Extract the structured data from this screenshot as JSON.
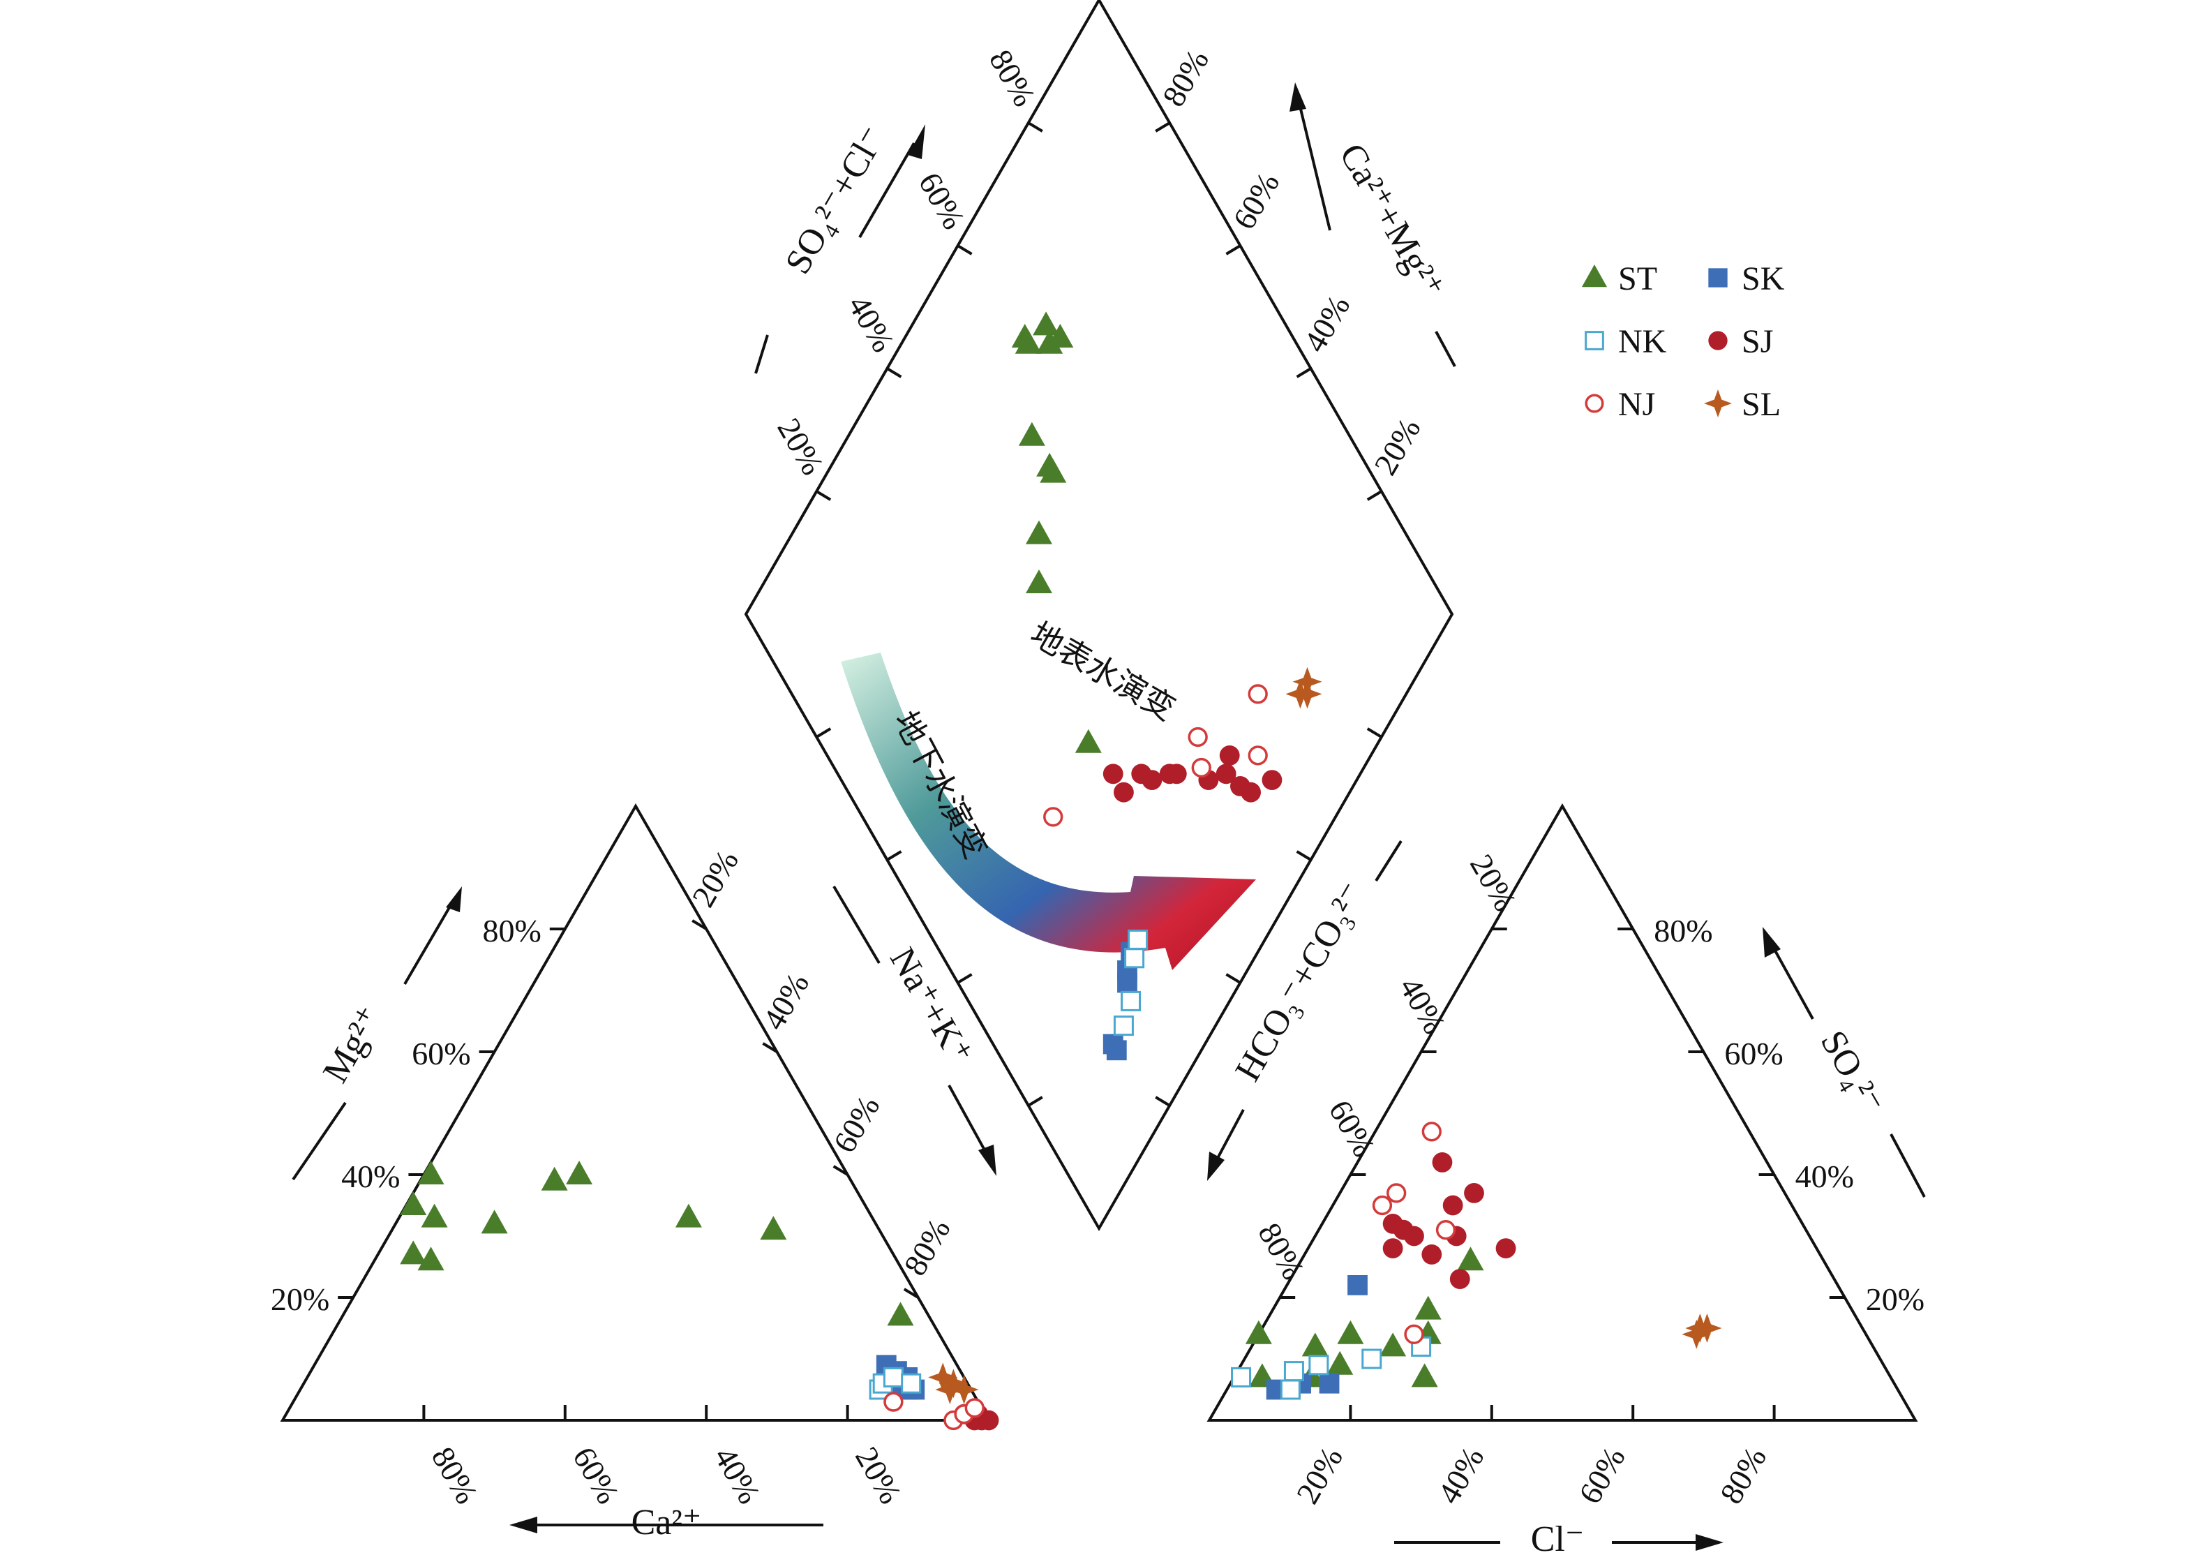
{
  "chart_data": {
    "type": "scatter",
    "axis_labels": {
      "cation_mg": "Mg²⁺",
      "cation_na_k": "Na⁺+K⁺",
      "cation_ca": "Ca²⁺",
      "anion_hco3_co3": "HCO₃⁻+CO₃²⁻",
      "anion_so4": "SO₄²⁻",
      "anion_cl": "Cl⁻",
      "diamond_upper_left": "SO₄²⁻+Cl⁻",
      "diamond_upper_right": "Ca²⁺+Mg²⁺"
    },
    "tick_labels": [
      "20%",
      "40%",
      "60%",
      "80%"
    ],
    "annotations": {
      "surface": "地表水演变",
      "groundwater": "地下水演变"
    },
    "legend_position": "top-right",
    "series": [
      {
        "name": "ST",
        "marker": "triangle-filled",
        "color": "#4a7d2a",
        "cation": [
          [
            68,
            27
          ],
          [
            66,
            26
          ],
          [
            64,
            35
          ],
          [
            62,
            33
          ],
          [
            59,
            40
          ],
          [
            54,
            32
          ],
          [
            42,
            39
          ],
          [
            38,
            40
          ],
          [
            26,
            33
          ],
          [
            15,
            31
          ],
          [
            4,
            17
          ]
        ],
        "anion": [
          [
            89,
            7
          ],
          [
            86,
            14
          ],
          [
            82,
            7
          ],
          [
            79,
            12
          ],
          [
            77,
            9
          ],
          [
            73,
            14
          ],
          [
            68,
            12
          ],
          [
            66,
            7
          ],
          [
            62,
            14
          ],
          [
            60,
            18
          ],
          [
            50,
            26
          ]
        ],
        "diamond": [
          [
            17,
            62
          ],
          [
            18,
            62
          ],
          [
            19,
            66
          ],
          [
            21,
            65
          ],
          [
            22,
            67
          ],
          [
            26,
            55
          ],
          [
            31,
            55
          ],
          [
            32,
            55
          ],
          [
            35,
            48
          ],
          [
            39,
            44
          ],
          [
            59,
            38
          ]
        ]
      },
      {
        "name": "SK",
        "marker": "square-filled",
        "color": "#3e6fb6",
        "cation": [
          [
            8,
            5
          ],
          [
            8,
            7
          ],
          [
            9,
            8
          ],
          [
            10,
            6
          ],
          [
            10,
            9
          ],
          [
            9,
            5
          ]
        ],
        "anion": [
          [
            88,
            5
          ],
          [
            86,
            5
          ],
          [
            84,
            6
          ],
          [
            80,
            6
          ],
          [
            68,
            22
          ]
        ],
        "diamond": [
          [
            88,
            17
          ],
          [
            87,
            17
          ],
          [
            84,
            24
          ],
          [
            83,
            25
          ],
          [
            82,
            27
          ]
        ]
      },
      {
        "name": "NK",
        "marker": "square-open",
        "color": "#4aa7d0",
        "cation": [
          [
            13,
            5
          ],
          [
            12,
            6
          ],
          [
            10,
            7
          ],
          [
            8,
            6
          ]
        ],
        "anion": [
          [
            92,
            7
          ],
          [
            86,
            5
          ],
          [
            84,
            8
          ],
          [
            80,
            9
          ],
          [
            72,
            10
          ],
          [
            64,
            12
          ]
        ],
        "diamond": [
          [
            87,
            20
          ],
          [
            86,
            23
          ],
          [
            83,
            27
          ],
          [
            82,
            29
          ]
        ]
      },
      {
        "name": "SJ",
        "marker": "circle-filled",
        "color": "#b01e2a",
        "cation": [
          [
            3,
            1
          ],
          [
            2,
            0
          ],
          [
            1,
            1
          ],
          [
            1,
            0
          ],
          [
            0,
            0
          ],
          [
            2,
            1
          ]
        ],
        "anion": [
          [
            60,
            28
          ],
          [
            58,
            32
          ],
          [
            57,
            31
          ],
          [
            56,
            30
          ],
          [
            55,
            27
          ],
          [
            53,
            23
          ],
          [
            50,
            30
          ],
          [
            48,
            35
          ],
          [
            46,
            42
          ],
          [
            44,
            37
          ],
          [
            44,
            28
          ]
        ],
        "diamond": [
          [
            65,
            39
          ],
          [
            68,
            39
          ],
          [
            69,
            43
          ],
          [
            71,
            44
          ],
          [
            73,
            47
          ],
          [
            74,
            48
          ],
          [
            79,
            52
          ],
          [
            80,
            57
          ],
          [
            81,
            55
          ],
          [
            84,
            56
          ],
          [
            86,
            57
          ],
          [
            88,
            61
          ]
        ]
      },
      {
        "name": "NJ",
        "marker": "circle-open",
        "color": "#d43a3a",
        "cation": [
          [
            12,
            3
          ],
          [
            5,
            0
          ],
          [
            3,
            1
          ],
          [
            1,
            2
          ]
        ],
        "anion": [
          [
            58,
            35
          ],
          [
            55,
            37
          ],
          [
            51,
            31
          ],
          [
            45,
            47
          ],
          [
            64,
            14
          ]
        ],
        "diamond": [
          [
            60,
            27
          ],
          [
            74,
            54
          ],
          [
            77,
            52
          ],
          [
            79,
            66
          ],
          [
            84,
            61
          ]
        ]
      },
      {
        "name": "SL",
        "marker": "star4",
        "color": "#b85a20",
        "cation": [
          [
            2,
            6
          ],
          [
            3,
            5
          ],
          [
            1,
            5
          ],
          [
            3,
            7
          ]
        ],
        "anion": [
          [
            24,
            14
          ],
          [
            23,
            15
          ],
          [
            22,
            15
          ]
        ],
        "diamond": [
          [
            85,
            74
          ],
          [
            86,
            73
          ],
          [
            85,
            72
          ]
        ]
      }
    ]
  }
}
